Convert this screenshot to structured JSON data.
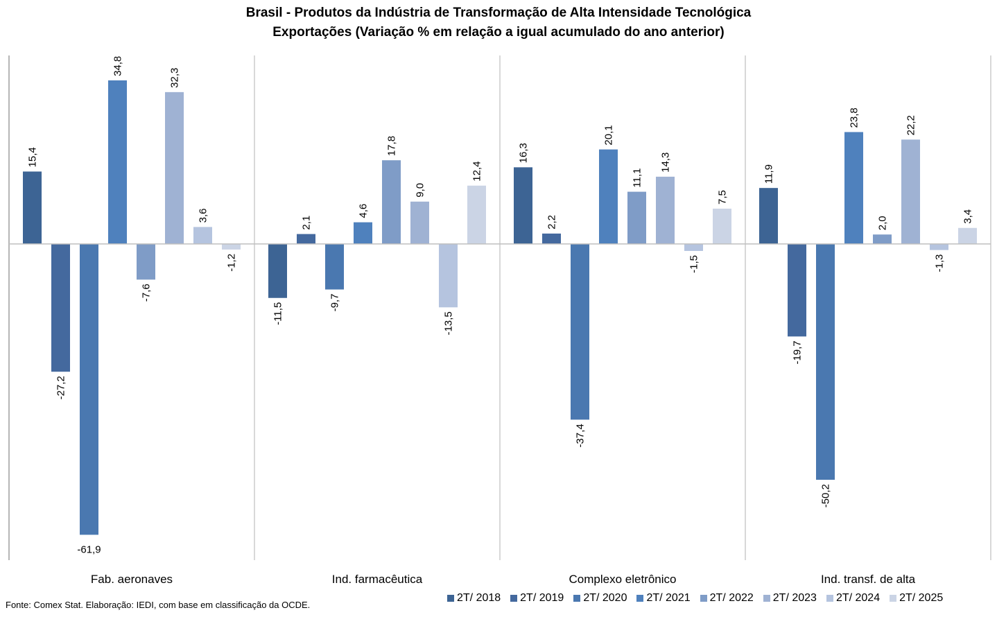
{
  "chart_data": {
    "type": "bar",
    "title": "Brasil - Produtos da Indústria de Transformação de Alta Intensidade Tecnológica",
    "subtitle": "Exportações (Variação % em relação a igual acumulado do ano anterior)",
    "xlabel": "",
    "ylabel": "",
    "ylim": [
      -67.3,
      40.1
    ],
    "grid": false,
    "legend_position": "bottom-right",
    "categories": [
      "Fab. aeronaves",
      "Ind. farmacêutica",
      "Complexo eletrônico",
      "Ind. transf. de alta"
    ],
    "series": [
      {
        "name": "2T/ 2018",
        "color": "#3d6494",
        "values": [
          15.4,
          -11.5,
          16.3,
          11.9
        ],
        "labels": [
          "15,4",
          "-11,5",
          "16,3",
          "11,9"
        ]
      },
      {
        "name": "2T/ 2019",
        "color": "#44699e",
        "values": [
          -27.2,
          2.1,
          2.2,
          -19.7
        ],
        "labels": [
          "-27,2",
          "2,1",
          "2,2",
          "-19,7"
        ]
      },
      {
        "name": "2T/ 2020",
        "color": "#4a78b0",
        "values": [
          -61.9,
          -9.7,
          -37.4,
          -50.2
        ],
        "labels": [
          "-61,9",
          "-9,7",
          "-37,4",
          "-50,2"
        ]
      },
      {
        "name": "2T/ 2021",
        "color": "#4f81bd",
        "values": [
          34.8,
          4.6,
          20.1,
          23.8
        ],
        "labels": [
          "34,8",
          "4,6",
          "20,1",
          "23,8"
        ]
      },
      {
        "name": "2T/ 2022",
        "color": "#7f9cc7",
        "values": [
          -7.6,
          17.8,
          11.1,
          2.0
        ],
        "labels": [
          "-7,6",
          "17,8",
          "11,1",
          "2,0"
        ]
      },
      {
        "name": "2T/ 2023",
        "color": "#9fb2d3",
        "values": [
          32.3,
          9.0,
          14.3,
          22.2
        ],
        "labels": [
          "32,3",
          "9,0",
          "14,3",
          "22,2"
        ]
      },
      {
        "name": "2T/ 2024",
        "color": "#b5c4df",
        "values": [
          3.6,
          -13.5,
          -1.5,
          -1.3
        ],
        "labels": [
          "3,6",
          "-13,5",
          "-1,5",
          "-1,3"
        ]
      },
      {
        "name": "2T/ 2025",
        "color": "#cbd4e5",
        "values": [
          -1.2,
          12.4,
          7.5,
          3.4
        ],
        "labels": [
          "-1,2",
          "12,4",
          "7,5",
          "3,4"
        ]
      }
    ]
  },
  "footer": {
    "source": "Fonte: Comex Stat. Elaboração: IEDI, com base em classificação da OCDE."
  }
}
